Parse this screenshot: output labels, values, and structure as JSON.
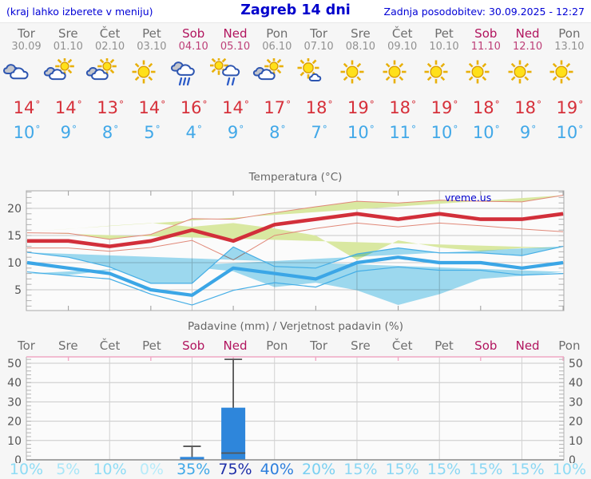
{
  "header": {
    "left_note": "(kraj lahko izberete v meniju)",
    "title": "Zagreb 14 dni",
    "updated": "Zadnja posodobitev: 30.09.2025 - 12:27"
  },
  "watermark": "vreme.us",
  "units": {
    "degree": "°"
  },
  "colors": {
    "header_blue": "#0000d6",
    "weekday": "#6e6e6e",
    "weekend": "#b1145e",
    "high_temp": "#d6303a",
    "low_temp": "#41a8e8",
    "high_band": "#d9e8a1",
    "high_band_edge": "#e08878",
    "low_band": "#9fdcf2",
    "low_band_edge": "#45aee6",
    "bar_blue": "#2e86db",
    "whisker": "#555555",
    "grid": "#c9c9c9",
    "precip_top_border": "#efa8c4"
  },
  "days": [
    {
      "name": "Tor",
      "date": "30.09",
      "weekend": false,
      "icon": "cloudy",
      "high": 14,
      "low": 10,
      "prob": "10%",
      "prob_color": "#8edcf5"
    },
    {
      "name": "Sre",
      "date": "01.10",
      "weekend": false,
      "icon": "partly-cloudy",
      "high": 14,
      "low": 9,
      "prob": "5%",
      "prob_color": "#a9e6f8"
    },
    {
      "name": "Čet",
      "date": "02.10",
      "weekend": false,
      "icon": "partly-cloudy",
      "high": 13,
      "low": 8,
      "prob": "10%",
      "prob_color": "#8edcf5"
    },
    {
      "name": "Pet",
      "date": "03.10",
      "weekend": false,
      "icon": "sunny",
      "high": 14,
      "low": 5,
      "prob": "0%",
      "prob_color": "#b7ebfa"
    },
    {
      "name": "Sob",
      "date": "04.10",
      "weekend": true,
      "icon": "rain",
      "high": 16,
      "low": 4,
      "prob": "35%",
      "prob_color": "#3fa8e8"
    },
    {
      "name": "Ned",
      "date": "05.10",
      "weekend": true,
      "icon": "sun-rain",
      "high": 14,
      "low": 9,
      "prob": "75%",
      "prob_color": "#1e2fa8"
    },
    {
      "name": "Pon",
      "date": "06.10",
      "weekend": false,
      "icon": "partly-cloudy",
      "high": 17,
      "low": 8,
      "prob": "40%",
      "prob_color": "#2d7fdd"
    },
    {
      "name": "Tor",
      "date": "07.10",
      "weekend": false,
      "icon": "mostly-sunny",
      "high": 18,
      "low": 7,
      "prob": "20%",
      "prob_color": "#79d0f2"
    },
    {
      "name": "Sre",
      "date": "08.10",
      "weekend": false,
      "icon": "sunny",
      "high": 19,
      "low": 10,
      "prob": "15%",
      "prob_color": "#8ad7f4"
    },
    {
      "name": "Čet",
      "date": "09.10",
      "weekend": false,
      "icon": "sunny",
      "high": 18,
      "low": 11,
      "prob": "15%",
      "prob_color": "#8ad7f4"
    },
    {
      "name": "Pet",
      "date": "10.10",
      "weekend": false,
      "icon": "sunny",
      "high": 19,
      "low": 10,
      "prob": "15%",
      "prob_color": "#8ad7f4"
    },
    {
      "name": "Sob",
      "date": "11.10",
      "weekend": true,
      "icon": "sunny",
      "high": 18,
      "low": 10,
      "prob": "15%",
      "prob_color": "#8ad7f4"
    },
    {
      "name": "Ned",
      "date": "12.10",
      "weekend": true,
      "icon": "sunny",
      "high": 18,
      "low": 9,
      "prob": "15%",
      "prob_color": "#8ad7f4"
    },
    {
      "name": "Pon",
      "date": "13.10",
      "weekend": false,
      "icon": "sunny",
      "high": 19,
      "low": 10,
      "prob": "10%",
      "prob_color": "#8edcf5"
    }
  ],
  "chart_data": [
    {
      "type": "line",
      "title": "Temperatura (°C)",
      "x_labels": [
        "Tor",
        "Sre",
        "Čet",
        "Pet",
        "Sob",
        "Ned",
        "Pon",
        "Tor",
        "Sre",
        "Čet",
        "Pet",
        "Sob",
        "Ned",
        "Pon"
      ],
      "ylim": [
        1.2,
        23.2
      ],
      "yticks": [
        5,
        10,
        15,
        20
      ],
      "grid": true,
      "series": [
        {
          "name": "high_temp",
          "color": "#d22f3a",
          "values": [
            14,
            14,
            13,
            14,
            16,
            14,
            17,
            18,
            19,
            18,
            19,
            18,
            18,
            19
          ]
        },
        {
          "name": "high_band_upper",
          "values": [
            15.5,
            15.4,
            14.3,
            15.2,
            18.1,
            18.0,
            19.2,
            20.3,
            21.3,
            21.0,
            21.5,
            21.3,
            21.2,
            22.4
          ]
        },
        {
          "name": "high_band_lower",
          "values": [
            12.7,
            12.7,
            12.1,
            12.8,
            14.1,
            10.5,
            15.0,
            16.3,
            17.3,
            16.6,
            17.3,
            16.8,
            16.2,
            15.7
          ]
        },
        {
          "name": "low_temp",
          "color": "#3ba6e6",
          "values": [
            10,
            9,
            8,
            5,
            4,
            9,
            8,
            7,
            10,
            11,
            10,
            10,
            9,
            10
          ]
        },
        {
          "name": "low_band_upper",
          "values": [
            11.9,
            11.0,
            9.2,
            6.2,
            6.2,
            12.9,
            9.3,
            9.0,
            11.6,
            12.7,
            11.8,
            11.8,
            11.3,
            13.0
          ]
        },
        {
          "name": "low_band_lower",
          "values": [
            8.3,
            7.6,
            7.0,
            4.2,
            2.2,
            4.9,
            6.3,
            5.5,
            8.4,
            9.2,
            8.6,
            8.6,
            7.7,
            8.0
          ]
        }
      ]
    },
    {
      "type": "bar",
      "title": "Padavine (mm) / Verjetnost padavin (%)",
      "categories": [
        "Tor",
        "Sre",
        "Čet",
        "Pet",
        "Sob",
        "Ned",
        "Pon",
        "Tor",
        "Sre",
        "Čet",
        "Pet",
        "Sob",
        "Ned",
        "Pon"
      ],
      "values_mm": [
        0,
        0,
        0,
        0,
        1.5,
        27,
        0,
        0,
        0,
        0,
        0,
        0,
        0,
        0
      ],
      "whisker_low": [
        null,
        null,
        null,
        null,
        0,
        3.5,
        null,
        null,
        null,
        null,
        null,
        null,
        null,
        null
      ],
      "whisker_high": [
        null,
        null,
        null,
        null,
        7,
        52,
        null,
        null,
        null,
        null,
        null,
        null,
        null,
        null
      ],
      "probabilities_pct": [
        10,
        5,
        10,
        0,
        35,
        75,
        40,
        20,
        15,
        15,
        15,
        15,
        15,
        10
      ],
      "ylim": [
        0,
        53
      ],
      "yticks": [
        0,
        10,
        20,
        30,
        40,
        50
      ],
      "legend_position": "none"
    }
  ]
}
